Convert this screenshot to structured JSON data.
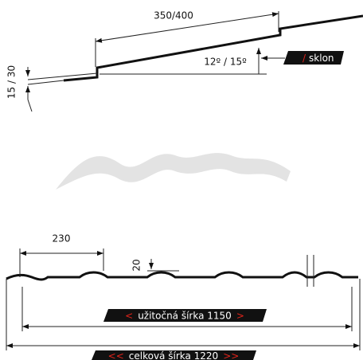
{
  "roof": {
    "rafter_length": "350/400",
    "pitch": "12º / 15º",
    "slope_tag": {
      "slash": "/",
      "text": "sklon"
    },
    "overlap": "15 / 30"
  },
  "profile": {
    "wave_pitch": "230",
    "wave_height": "20",
    "useful_width": {
      "left": "<",
      "text": "užitočná šírka 1150",
      "right": ">"
    },
    "total_width": {
      "left": "<<",
      "text": "celková šírka 1220",
      "right": ">>"
    }
  }
}
